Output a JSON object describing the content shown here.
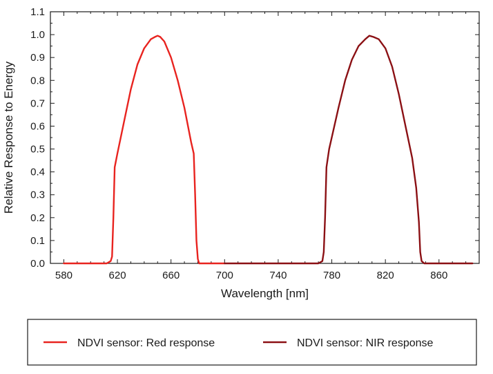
{
  "chart_data": {
    "type": "line",
    "title": "",
    "xlabel": "Wavelength [nm]",
    "ylabel": "Relative Response to Energy",
    "xlim": [
      570,
      890
    ],
    "ylim": [
      0.0,
      1.1
    ],
    "x_ticks": [
      580,
      620,
      660,
      700,
      740,
      780,
      820,
      860
    ],
    "x_tick_labels": [
      "580",
      "620",
      "660",
      "700",
      "740",
      "780",
      "820",
      "860"
    ],
    "y_ticks": [
      0.0,
      0.1,
      0.2,
      0.3,
      0.4,
      0.5,
      0.6,
      0.7,
      0.8,
      0.9,
      1.0,
      1.1
    ],
    "y_tick_labels": [
      "0.0",
      "0.1",
      "0.2",
      "0.3",
      "0.4",
      "0.5",
      "0.6",
      "0.7",
      "0.8",
      "0.9",
      "1.0",
      "1.1"
    ],
    "grid": false,
    "legend_position": "bottom",
    "series": [
      {
        "name": "NDVI sensor: Red response",
        "color": "#e8231f",
        "x": [
          580,
          600,
          612,
          615,
          616,
          617,
          618,
          620,
          625,
          630,
          635,
          640,
          645,
          648,
          650,
          652,
          655,
          660,
          665,
          670,
          675,
          677,
          678,
          679,
          680,
          681,
          685,
          700
        ],
        "y": [
          0.0,
          0.0,
          0.0,
          0.01,
          0.03,
          0.2,
          0.42,
          0.48,
          0.62,
          0.76,
          0.87,
          0.94,
          0.98,
          0.99,
          0.995,
          0.99,
          0.97,
          0.9,
          0.8,
          0.68,
          0.53,
          0.48,
          0.3,
          0.1,
          0.02,
          0.0,
          0.0,
          0.0
        ]
      },
      {
        "name": "NDVI sensor: NIR response",
        "color": "#8b1014",
        "x": [
          700,
          740,
          770,
          773,
          774,
          775,
          776,
          778,
          785,
          790,
          795,
          800,
          805,
          808,
          811,
          815,
          820,
          825,
          830,
          835,
          840,
          843,
          845,
          846,
          847,
          849,
          860,
          885
        ],
        "y": [
          0.0,
          0.0,
          0.0,
          0.01,
          0.05,
          0.2,
          0.42,
          0.5,
          0.68,
          0.8,
          0.89,
          0.95,
          0.98,
          0.995,
          0.99,
          0.98,
          0.94,
          0.86,
          0.74,
          0.6,
          0.46,
          0.33,
          0.18,
          0.05,
          0.01,
          0.0,
          0.0,
          0.0
        ]
      }
    ]
  }
}
